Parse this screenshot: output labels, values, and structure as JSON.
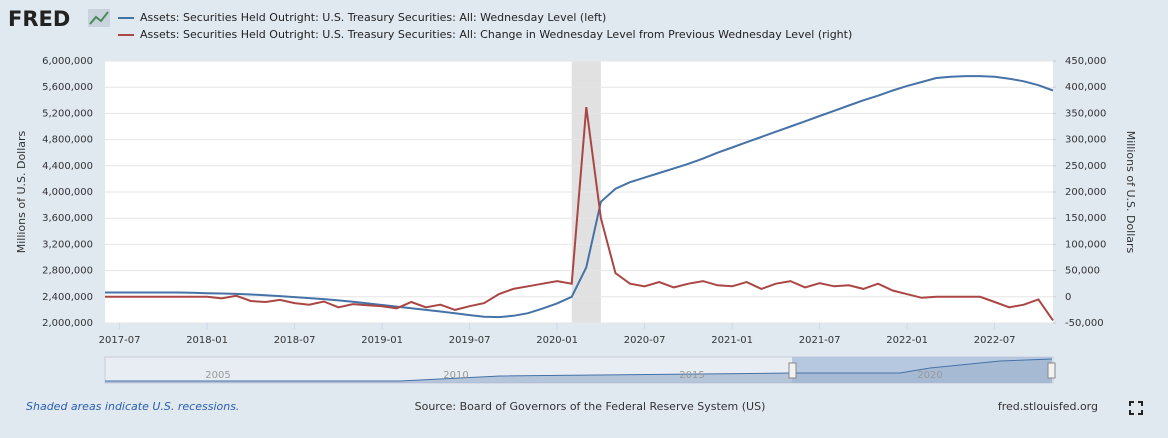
{
  "logo": "FRED",
  "chart_data": {
    "type": "line",
    "x": [
      "2017-06",
      "2017-07",
      "2017-08",
      "2017-09",
      "2017-10",
      "2017-11",
      "2017-12",
      "2018-01",
      "2018-02",
      "2018-03",
      "2018-04",
      "2018-05",
      "2018-06",
      "2018-07",
      "2018-08",
      "2018-09",
      "2018-10",
      "2018-11",
      "2018-12",
      "2019-01",
      "2019-02",
      "2019-03",
      "2019-04",
      "2019-05",
      "2019-06",
      "2019-07",
      "2019-08",
      "2019-09",
      "2019-10",
      "2019-11",
      "2019-12",
      "2020-01",
      "2020-02",
      "2020-03",
      "2020-04",
      "2020-05",
      "2020-06",
      "2020-07",
      "2020-08",
      "2020-09",
      "2020-10",
      "2020-11",
      "2020-12",
      "2021-01",
      "2021-02",
      "2021-03",
      "2021-04",
      "2021-05",
      "2021-06",
      "2021-07",
      "2021-08",
      "2021-09",
      "2021-10",
      "2021-11",
      "2021-12",
      "2022-01",
      "2022-02",
      "2022-03",
      "2022-04",
      "2022-05",
      "2022-06",
      "2022-07",
      "2022-08",
      "2022-09",
      "2022-10",
      "2022-11"
    ],
    "series": [
      {
        "name": "Assets: Securities Held Outright: U.S. Treasury Securities: All: Wednesday Level (left)",
        "color": "#4572a7",
        "values": [
          2465000,
          2465000,
          2465000,
          2465000,
          2465000,
          2465000,
          2462000,
          2455000,
          2450000,
          2445000,
          2435000,
          2425000,
          2410000,
          2395000,
          2380000,
          2365000,
          2345000,
          2325000,
          2300000,
          2275000,
          2250000,
          2225000,
          2200000,
          2175000,
          2150000,
          2120000,
          2095000,
          2090000,
          2110000,
          2150000,
          2220000,
          2300000,
          2400000,
          2850000,
          3850000,
          4050000,
          4150000,
          4220000,
          4290000,
          4360000,
          4430000,
          4510000,
          4600000,
          4680000,
          4760000,
          4840000,
          4920000,
          5000000,
          5080000,
          5160000,
          5240000,
          5320000,
          5400000,
          5470000,
          5550000,
          5620000,
          5680000,
          5740000,
          5760000,
          5770000,
          5770000,
          5760000,
          5730000,
          5690000,
          5630000,
          5550000
        ]
      },
      {
        "name": "Assets: Securities Held Outright: U.S. Treasury Securities: All: Change in Wednesday Level from Previous Wednesday Level (right)",
        "color": "#aa4643",
        "axis": "y2",
        "values": [
          0,
          0,
          0,
          0,
          0,
          0,
          0,
          0,
          -3000,
          2000,
          -8000,
          -10000,
          -6000,
          -12000,
          -15000,
          -9000,
          -20000,
          -14000,
          -16000,
          -18000,
          -22000,
          -10000,
          -20000,
          -15000,
          -25000,
          -18000,
          -12000,
          5000,
          15000,
          20000,
          25000,
          30000,
          25000,
          362000,
          150000,
          45000,
          25000,
          20000,
          28000,
          18000,
          25000,
          30000,
          22000,
          20000,
          28000,
          15000,
          25000,
          30000,
          18000,
          26000,
          20000,
          22000,
          15000,
          25000,
          12000,
          5000,
          -2000,
          0,
          0,
          0,
          0,
          -10000,
          -20000,
          -15000,
          -5000,
          -45000
        ]
      }
    ],
    "recessions": [
      [
        "2020-02",
        "2020-04"
      ]
    ],
    "xlim": [
      "2017-06",
      "2022-11"
    ],
    "xticks": [
      "2017-07",
      "2018-01",
      "2018-07",
      "2019-01",
      "2019-07",
      "2020-01",
      "2020-07",
      "2021-01",
      "2021-07",
      "2022-01",
      "2022-07"
    ],
    "ylim": [
      2000000,
      6000000
    ],
    "yticks": [
      {
        "value": 2000000,
        "label": "2,000,000"
      },
      {
        "value": 2400000,
        "label": "2,400,000"
      },
      {
        "value": 2800000,
        "label": "2,800,000"
      },
      {
        "value": 3200000,
        "label": "3,200,000"
      },
      {
        "value": 3600000,
        "label": "3,600,000"
      },
      {
        "value": 4000000,
        "label": "4,000,000"
      },
      {
        "value": 4400000,
        "label": "4,400,000"
      },
      {
        "value": 4800000,
        "label": "4,800,000"
      },
      {
        "value": 5200000,
        "label": "5,200,000"
      },
      {
        "value": 5600000,
        "label": "5,600,000"
      },
      {
        "value": 6000000,
        "label": "6,000,000"
      }
    ],
    "y2lim": [
      -50000,
      450000
    ],
    "y2ticks": [
      {
        "value": -50000,
        "label": "-50,000"
      },
      0,
      {
        "value": 50000,
        "label": "50,000"
      },
      {
        "value": 100000,
        "label": "100,000"
      },
      {
        "value": 150000,
        "label": "150,000"
      },
      {
        "value": 200000,
        "label": "200,000"
      },
      {
        "value": 250000,
        "label": "250,000"
      },
      {
        "value": 300000,
        "label": "300,000"
      },
      {
        "value": 350000,
        "label": "350,000"
      },
      {
        "value": 400000,
        "label": "400,000"
      },
      {
        "value": 450000,
        "label": "450,000"
      }
    ],
    "ylabel": "Millions of U.S. Dollars",
    "y2label": "Millions of U.S. Dollars",
    "grid": true,
    "navigator_labels": [
      "2005",
      "2010",
      "2015",
      "2020"
    ]
  },
  "footer": {
    "note": "Shaded areas indicate U.S. recessions.",
    "source": "Source: Board of Governors of the Federal Reserve System (US)",
    "site": "fred.stlouisfed.org"
  }
}
